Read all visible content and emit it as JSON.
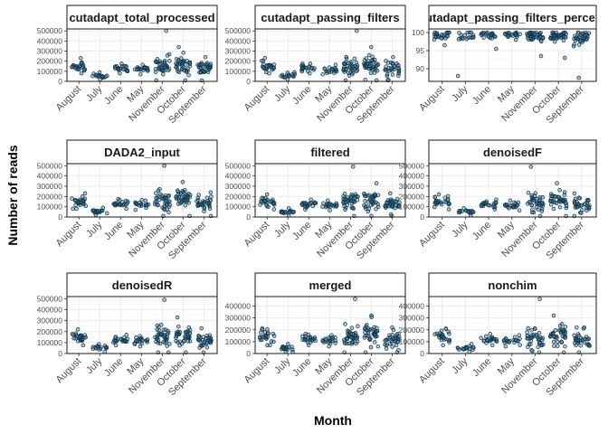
{
  "chart_data": {
    "type": "scatter",
    "style": "faceted jitter strip plot, 3x3 facets, hollow-ish dark teal points, black panel borders, strip labels on top",
    "xlabel": "Month",
    "ylabel": "Number of reads",
    "categories": [
      "August",
      "July",
      "June",
      "May",
      "November",
      "October",
      "September"
    ],
    "colors": {
      "point_fill": "#2e6f8e",
      "point_stroke": "#0b2f45",
      "strip_bg": "#ffffff",
      "grid": "#ebebeb",
      "border": "#1a1a1a"
    },
    "facets": [
      {
        "title": "cutadapt_total_processed",
        "ylim": [
          0,
          520000
        ],
        "yticks": [
          0,
          100000,
          200000,
          300000,
          400000,
          500000
        ],
        "ytick_labels": [
          "0",
          "100000",
          "200000",
          "300000",
          "400000",
          "500000"
        ],
        "groups": [
          {
            "category": "August",
            "n": 26,
            "center": 150000,
            "spread": 55000,
            "min": 80000,
            "max": 230000
          },
          {
            "category": "July",
            "n": 18,
            "center": 55000,
            "spread": 20000,
            "min": 20000,
            "max": 90000
          },
          {
            "category": "June",
            "n": 22,
            "center": 130000,
            "spread": 30000,
            "min": 80000,
            "max": 175000
          },
          {
            "category": "May",
            "n": 20,
            "center": 120000,
            "spread": 30000,
            "min": 70000,
            "max": 165000
          },
          {
            "category": "November",
            "n": 40,
            "center": 150000,
            "spread": 90000,
            "min": 10000,
            "max": 500000
          },
          {
            "category": "October",
            "n": 40,
            "center": 170000,
            "spread": 90000,
            "min": 10000,
            "max": 340000
          },
          {
            "category": "September",
            "n": 34,
            "center": 130000,
            "spread": 70000,
            "min": 10000,
            "max": 240000
          }
        ]
      },
      {
        "title": "cutadapt_passing_filters",
        "ylim": [
          0,
          520000
        ],
        "yticks": [
          0,
          100000,
          200000,
          300000,
          400000,
          500000
        ],
        "ytick_labels": [
          "0",
          "100000",
          "200000",
          "300000",
          "400000",
          "500000"
        ],
        "groups": [
          {
            "category": "August",
            "n": 26,
            "center": 150000,
            "spread": 55000,
            "min": 80000,
            "max": 230000
          },
          {
            "category": "July",
            "n": 18,
            "center": 55000,
            "spread": 20000,
            "min": 20000,
            "max": 90000
          },
          {
            "category": "June",
            "n": 22,
            "center": 130000,
            "spread": 30000,
            "min": 80000,
            "max": 175000
          },
          {
            "category": "May",
            "n": 20,
            "center": 120000,
            "spread": 30000,
            "min": 70000,
            "max": 165000
          },
          {
            "category": "November",
            "n": 40,
            "center": 150000,
            "spread": 90000,
            "min": 10000,
            "max": 500000
          },
          {
            "category": "October",
            "n": 40,
            "center": 170000,
            "spread": 90000,
            "min": 10000,
            "max": 340000
          },
          {
            "category": "September",
            "n": 34,
            "center": 130000,
            "spread": 70000,
            "min": 10000,
            "max": 240000
          }
        ]
      },
      {
        "title": "cutadapt_passing_filters_percent",
        "ylim": [
          86.5,
          101
        ],
        "yticks": [
          90,
          95,
          100
        ],
        "ytick_labels": [
          "90",
          "95",
          "100"
        ],
        "groups": [
          {
            "category": "August",
            "n": 26,
            "center": 99.2,
            "spread": 1.2,
            "min": 96.5,
            "max": 100
          },
          {
            "category": "July",
            "n": 18,
            "center": 98.8,
            "spread": 1.5,
            "min": 88,
            "max": 100
          },
          {
            "category": "June",
            "n": 22,
            "center": 99.2,
            "spread": 1.0,
            "min": 95.5,
            "max": 100
          },
          {
            "category": "May",
            "n": 20,
            "center": 99.4,
            "spread": 0.6,
            "min": 98,
            "max": 100
          },
          {
            "category": "November",
            "n": 40,
            "center": 98.8,
            "spread": 1.5,
            "min": 93.5,
            "max": 100
          },
          {
            "category": "October",
            "n": 40,
            "center": 98.9,
            "spread": 1.5,
            "min": 93,
            "max": 100
          },
          {
            "category": "September",
            "n": 34,
            "center": 98.5,
            "spread": 2.0,
            "min": 87.5,
            "max": 100
          }
        ]
      },
      {
        "title": "DADA2_input",
        "ylim": [
          0,
          520000
        ],
        "yticks": [
          0,
          100000,
          200000,
          300000,
          400000,
          500000
        ],
        "ytick_labels": [
          "0",
          "100000",
          "200000",
          "300000",
          "400000",
          "500000"
        ],
        "groups": [
          {
            "category": "August",
            "n": 26,
            "center": 150000,
            "spread": 55000,
            "min": 80000,
            "max": 230000
          },
          {
            "category": "July",
            "n": 18,
            "center": 55000,
            "spread": 20000,
            "min": 20000,
            "max": 90000
          },
          {
            "category": "June",
            "n": 22,
            "center": 130000,
            "spread": 30000,
            "min": 80000,
            "max": 175000
          },
          {
            "category": "May",
            "n": 20,
            "center": 120000,
            "spread": 30000,
            "min": 70000,
            "max": 165000
          },
          {
            "category": "November",
            "n": 40,
            "center": 150000,
            "spread": 90000,
            "min": 10000,
            "max": 500000
          },
          {
            "category": "October",
            "n": 40,
            "center": 170000,
            "spread": 90000,
            "min": 10000,
            "max": 340000
          },
          {
            "category": "September",
            "n": 34,
            "center": 130000,
            "spread": 70000,
            "min": 10000,
            "max": 240000
          }
        ]
      },
      {
        "title": "filtered",
        "ylim": [
          0,
          520000
        ],
        "yticks": [
          0,
          100000,
          200000,
          300000,
          400000,
          500000
        ],
        "ytick_labels": [
          "0",
          "100000",
          "200000",
          "300000",
          "400000",
          "500000"
        ],
        "groups": [
          {
            "category": "August",
            "n": 26,
            "center": 145000,
            "spread": 50000,
            "min": 75000,
            "max": 220000
          },
          {
            "category": "July",
            "n": 18,
            "center": 50000,
            "spread": 18000,
            "min": 15000,
            "max": 85000
          },
          {
            "category": "June",
            "n": 22,
            "center": 125000,
            "spread": 30000,
            "min": 75000,
            "max": 170000
          },
          {
            "category": "May",
            "n": 20,
            "center": 115000,
            "spread": 30000,
            "min": 65000,
            "max": 160000
          },
          {
            "category": "November",
            "n": 40,
            "center": 145000,
            "spread": 90000,
            "min": 10000,
            "max": 490000
          },
          {
            "category": "October",
            "n": 40,
            "center": 165000,
            "spread": 90000,
            "min": 10000,
            "max": 330000
          },
          {
            "category": "September",
            "n": 34,
            "center": 125000,
            "spread": 70000,
            "min": 10000,
            "max": 230000
          }
        ]
      },
      {
        "title": "denoisedF",
        "ylim": [
          0,
          520000
        ],
        "yticks": [
          0,
          100000,
          200000,
          300000,
          400000,
          500000
        ],
        "ytick_labels": [
          "0",
          "100000",
          "200000",
          "300000",
          "400000",
          "500000"
        ],
        "groups": [
          {
            "category": "August",
            "n": 26,
            "center": 145000,
            "spread": 50000,
            "min": 75000,
            "max": 220000
          },
          {
            "category": "July",
            "n": 18,
            "center": 50000,
            "spread": 18000,
            "min": 15000,
            "max": 85000
          },
          {
            "category": "June",
            "n": 22,
            "center": 125000,
            "spread": 30000,
            "min": 75000,
            "max": 170000
          },
          {
            "category": "May",
            "n": 20,
            "center": 115000,
            "spread": 30000,
            "min": 65000,
            "max": 160000
          },
          {
            "category": "November",
            "n": 40,
            "center": 145000,
            "spread": 90000,
            "min": 10000,
            "max": 490000
          },
          {
            "category": "October",
            "n": 40,
            "center": 165000,
            "spread": 90000,
            "min": 10000,
            "max": 330000
          },
          {
            "category": "September",
            "n": 34,
            "center": 125000,
            "spread": 70000,
            "min": 10000,
            "max": 230000
          }
        ]
      },
      {
        "title": "denoisedR",
        "ylim": [
          0,
          520000
        ],
        "yticks": [
          0,
          100000,
          200000,
          300000,
          400000,
          500000
        ],
        "ytick_labels": [
          "0",
          "100000",
          "200000",
          "300000",
          "400000",
          "500000"
        ],
        "groups": [
          {
            "category": "August",
            "n": 26,
            "center": 145000,
            "spread": 50000,
            "min": 75000,
            "max": 220000
          },
          {
            "category": "July",
            "n": 18,
            "center": 50000,
            "spread": 18000,
            "min": 15000,
            "max": 85000
          },
          {
            "category": "June",
            "n": 22,
            "center": 125000,
            "spread": 30000,
            "min": 75000,
            "max": 170000
          },
          {
            "category": "May",
            "n": 20,
            "center": 115000,
            "spread": 30000,
            "min": 65000,
            "max": 160000
          },
          {
            "category": "November",
            "n": 40,
            "center": 145000,
            "spread": 90000,
            "min": 10000,
            "max": 490000
          },
          {
            "category": "October",
            "n": 40,
            "center": 165000,
            "spread": 90000,
            "min": 10000,
            "max": 330000
          },
          {
            "category": "September",
            "n": 34,
            "center": 125000,
            "spread": 70000,
            "min": 10000,
            "max": 230000
          }
        ]
      },
      {
        "title": "merged",
        "ylim": [
          0,
          480000
        ],
        "yticks": [
          0,
          100000,
          200000,
          300000,
          400000
        ],
        "ytick_labels": [
          "0",
          "100000",
          "200000",
          "300000",
          "400000"
        ],
        "groups": [
          {
            "category": "August",
            "n": 26,
            "center": 140000,
            "spread": 50000,
            "min": 70000,
            "max": 210000
          },
          {
            "category": "July",
            "n": 18,
            "center": 45000,
            "spread": 18000,
            "min": 15000,
            "max": 80000
          },
          {
            "category": "June",
            "n": 22,
            "center": 120000,
            "spread": 30000,
            "min": 70000,
            "max": 165000
          },
          {
            "category": "May",
            "n": 20,
            "center": 110000,
            "spread": 30000,
            "min": 60000,
            "max": 155000
          },
          {
            "category": "November",
            "n": 40,
            "center": 140000,
            "spread": 90000,
            "min": 10000,
            "max": 460000
          },
          {
            "category": "October",
            "n": 40,
            "center": 160000,
            "spread": 90000,
            "min": 10000,
            "max": 320000
          },
          {
            "category": "September",
            "n": 34,
            "center": 120000,
            "spread": 70000,
            "min": 10000,
            "max": 220000
          }
        ]
      },
      {
        "title": "nonchim",
        "ylim": [
          0,
          480000
        ],
        "yticks": [
          0,
          100000,
          200000,
          300000,
          400000
        ],
        "ytick_labels": [
          "0",
          "100000",
          "200000",
          "300000",
          "400000"
        ],
        "groups": [
          {
            "category": "August",
            "n": 26,
            "center": 140000,
            "spread": 50000,
            "min": 70000,
            "max": 210000
          },
          {
            "category": "July",
            "n": 18,
            "center": 45000,
            "spread": 18000,
            "min": 15000,
            "max": 80000
          },
          {
            "category": "June",
            "n": 22,
            "center": 120000,
            "spread": 30000,
            "min": 70000,
            "max": 165000
          },
          {
            "category": "May",
            "n": 20,
            "center": 110000,
            "spread": 30000,
            "min": 60000,
            "max": 155000
          },
          {
            "category": "November",
            "n": 40,
            "center": 140000,
            "spread": 90000,
            "min": 10000,
            "max": 460000
          },
          {
            "category": "October",
            "n": 40,
            "center": 160000,
            "spread": 90000,
            "min": 10000,
            "max": 320000
          },
          {
            "category": "September",
            "n": 34,
            "center": 120000,
            "spread": 70000,
            "min": 10000,
            "max": 220000
          }
        ]
      }
    ]
  }
}
